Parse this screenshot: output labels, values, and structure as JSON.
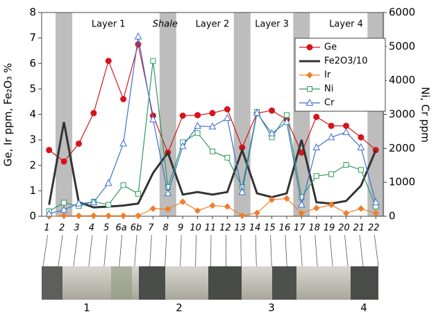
{
  "chart_data": {
    "type": "line",
    "ylabel": "Ge, Ir ppm, Fe₂O₃ %",
    "y2label": "Ni, Cr ppm",
    "categories": [
      "1",
      "2",
      "3",
      "4",
      "5",
      "6a",
      "6b",
      "7",
      "8",
      "9",
      "10",
      "11",
      "12",
      "13",
      "14",
      "15",
      "16",
      "17",
      "18",
      "19",
      "20",
      "21",
      "22"
    ],
    "shaded_categories": [
      "2",
      "8",
      "13",
      "17",
      "22"
    ],
    "layer_labels": [
      {
        "text": "Layer 1",
        "category": "5"
      },
      {
        "text": "Shale",
        "category": "8"
      },
      {
        "text": "Layer 2",
        "category": "11"
      },
      {
        "text": "Layer 3",
        "category": "15"
      },
      {
        "text": "Layer 4",
        "category": "20"
      }
    ],
    "unit_labels": [
      "1",
      "2",
      "3",
      "4"
    ],
    "ylim": [
      0,
      8
    ],
    "yticks": [
      0,
      1,
      2,
      3,
      4,
      5,
      6,
      7,
      8
    ],
    "y2lim": [
      0,
      6000
    ],
    "y2ticks": [
      0,
      1000,
      2000,
      3000,
      4000,
      5000,
      6000
    ],
    "legend": "upper right",
    "series": [
      {
        "name": "Ge",
        "color": "#d7141a",
        "marker": "circle",
        "values": [
          2.6,
          2.15,
          2.85,
          4.05,
          6.1,
          4.6,
          6.75,
          3.95,
          2.5,
          3.95,
          3.97,
          4.05,
          4.2,
          2.7,
          4.05,
          4.15,
          3.8,
          2.5,
          3.9,
          3.55,
          3.55,
          3.1,
          2.6
        ]
      },
      {
        "name": "Fe2O3/10",
        "color": "#333333",
        "marker": "none",
        "values": [
          0.45,
          3.7,
          0.55,
          0.35,
          0.38,
          0.42,
          0.5,
          1.7,
          2.5,
          0.85,
          0.95,
          0.85,
          0.95,
          2.6,
          0.9,
          0.75,
          0.9,
          3.0,
          0.55,
          0.5,
          0.6,
          1.2,
          2.6
        ]
      },
      {
        "name": "Ir",
        "color": "#f07d2a",
        "marker": "diamond",
        "values": [
          0,
          0.02,
          0.02,
          0.02,
          0.02,
          0.02,
          0.02,
          0.3,
          0.28,
          0.57,
          0.22,
          0.42,
          0.38,
          0.03,
          0.13,
          0.65,
          0.7,
          0.12,
          0.32,
          0.45,
          0.12,
          0.3,
          0.12
        ]
      },
      {
        "name": "Ni",
        "color": "#2e9a5a",
        "marker": "square",
        "axis": "y2",
        "values": [
          150,
          400,
          300,
          430,
          340,
          915,
          660,
          4575,
          860,
          2180,
          2450,
          1910,
          1725,
          860,
          3075,
          2325,
          2980,
          560,
          1185,
          1240,
          1515,
          1365,
          285
        ]
      },
      {
        "name": "Cr",
        "color": "#3b6fd6",
        "marker": "triangle",
        "axis": "y2",
        "values": [
          75,
          190,
          375,
          410,
          975,
          2140,
          5290,
          2850,
          675,
          2060,
          2660,
          2640,
          2890,
          710,
          3040,
          2440,
          2775,
          340,
          2025,
          2325,
          2475,
          2025,
          410
        ]
      }
    ]
  }
}
